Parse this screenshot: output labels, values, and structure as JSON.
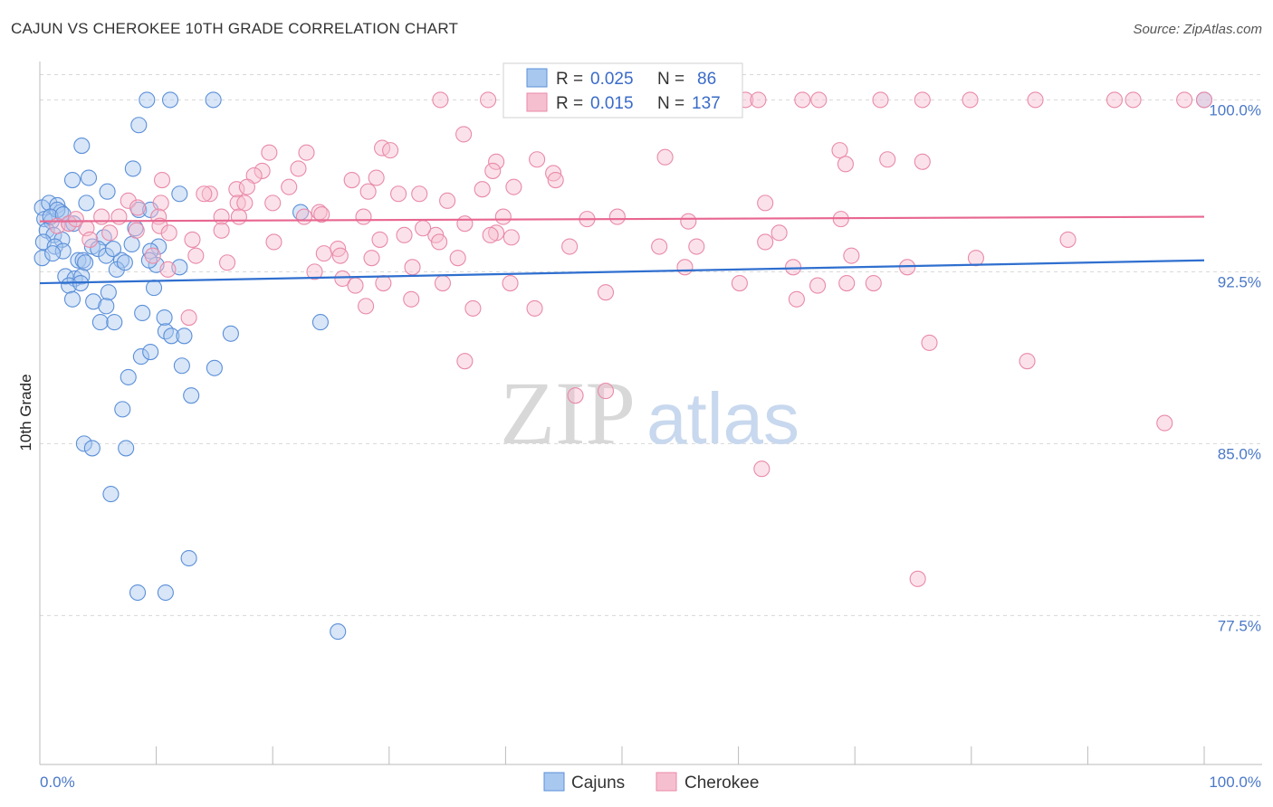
{
  "title": "CAJUN VS CHEROKEE 10TH GRADE CORRELATION CHART",
  "source": "Source: ZipAtlas.com",
  "watermark": {
    "zip": "ZIP",
    "atlas": "atlas"
  },
  "legend_box": {
    "r_label": "R =",
    "n_label": "N =",
    "rows": [
      {
        "series": "Cajuns",
        "r": "0.025",
        "n": "86"
      },
      {
        "series": "Cherokee",
        "r": "0.015",
        "n": "137"
      }
    ]
  },
  "bottom_legend": [
    "Cajuns",
    "Cherokee"
  ],
  "colors": {
    "cajun_fill": "#a8c8f0",
    "cajun_stroke": "#5b8fd8",
    "cajun_line": "#2f6fcf",
    "cherokee_fill": "#f6bfd0",
    "cherokee_stroke": "#e98aa8",
    "cherokee_line": "#e86690",
    "grid": "#d8d8d8",
    "tick_text": "#4a78c8"
  },
  "chart_data": {
    "type": "scatter",
    "title": "CAJUN VS CHEROKEE 10TH GRADE CORRELATION CHART",
    "xlabel": "",
    "ylabel": "10th Grade",
    "xlim": [
      0,
      100
    ],
    "ylim": [
      71.0,
      101.2
    ],
    "x_tick_labels": [
      "0.0%",
      "100.0%"
    ],
    "y_ticks": [
      {
        "value": 100.0,
        "label": "100.0%"
      },
      {
        "value": 92.5,
        "label": "92.5%"
      },
      {
        "value": 85.0,
        "label": "85.0%"
      },
      {
        "value": 77.5,
        "label": "77.5%"
      }
    ],
    "series": [
      {
        "name": "Cajuns",
        "trend": {
          "x": [
            0,
            100
          ],
          "y": [
            92.0,
            93.0
          ]
        },
        "points": [
          [
            9.2,
            100
          ],
          [
            11.2,
            100
          ],
          [
            14.9,
            100
          ],
          [
            100,
            100
          ],
          [
            8.5,
            98.9
          ],
          [
            3.6,
            98.0
          ],
          [
            8.0,
            97.0
          ],
          [
            2.8,
            96.5
          ],
          [
            4.2,
            96.6
          ],
          [
            5.8,
            96.0
          ],
          [
            12.0,
            95.9
          ],
          [
            0.2,
            95.3
          ],
          [
            0.8,
            95.5
          ],
          [
            1.5,
            95.4
          ],
          [
            1.8,
            95.1
          ],
          [
            4.0,
            95.5
          ],
          [
            8.5,
            95.2
          ],
          [
            9.5,
            95.2
          ],
          [
            22.4,
            95.1
          ],
          [
            0.4,
            94.8
          ],
          [
            1.0,
            94.7
          ],
          [
            2.5,
            94.6
          ],
          [
            0.6,
            94.3
          ],
          [
            1.2,
            94.1
          ],
          [
            8.2,
            94.4
          ],
          [
            0.3,
            93.8
          ],
          [
            1.9,
            93.9
          ],
          [
            5.5,
            94.0
          ],
          [
            1.3,
            93.6
          ],
          [
            2.0,
            93.4
          ],
          [
            4.5,
            93.6
          ],
          [
            5.0,
            93.5
          ],
          [
            7.9,
            93.7
          ],
          [
            10.2,
            93.6
          ],
          [
            0.2,
            93.1
          ],
          [
            3.3,
            93.0
          ],
          [
            5.7,
            93.2
          ],
          [
            7.0,
            93.0
          ],
          [
            9.5,
            93.4
          ],
          [
            3.7,
            93.0
          ],
          [
            2.2,
            92.3
          ],
          [
            3.0,
            92.2
          ],
          [
            3.6,
            92.3
          ],
          [
            6.6,
            92.6
          ],
          [
            10.0,
            92.8
          ],
          [
            12.0,
            92.7
          ],
          [
            2.5,
            91.9
          ],
          [
            3.5,
            92.0
          ],
          [
            5.9,
            91.6
          ],
          [
            9.8,
            91.8
          ],
          [
            2.8,
            91.3
          ],
          [
            4.6,
            91.2
          ],
          [
            5.7,
            91.0
          ],
          [
            8.8,
            90.7
          ],
          [
            10.7,
            90.5
          ],
          [
            5.2,
            90.3
          ],
          [
            6.4,
            90.3
          ],
          [
            24.1,
            90.3
          ],
          [
            10.8,
            89.9
          ],
          [
            11.3,
            89.7
          ],
          [
            12.4,
            89.7
          ],
          [
            16.4,
            89.8
          ],
          [
            8.7,
            88.8
          ],
          [
            9.5,
            89.0
          ],
          [
            12.2,
            88.4
          ],
          [
            15.0,
            88.3
          ],
          [
            7.6,
            87.9
          ],
          [
            13.0,
            87.1
          ],
          [
            7.1,
            86.5
          ],
          [
            3.8,
            85.0
          ],
          [
            4.5,
            84.8
          ],
          [
            7.4,
            84.8
          ],
          [
            6.1,
            82.8
          ],
          [
            12.8,
            80.0
          ],
          [
            8.4,
            78.5
          ],
          [
            10.8,
            78.5
          ],
          [
            25.6,
            76.8
          ],
          [
            1.5,
            95.2
          ],
          [
            2.9,
            94.6
          ],
          [
            3.9,
            92.9
          ],
          [
            6.3,
            93.5
          ],
          [
            1.1,
            93.3
          ],
          [
            7.3,
            92.9
          ],
          [
            9.4,
            93.0
          ],
          [
            0.9,
            94.9
          ],
          [
            2.0,
            95.0
          ]
        ]
      },
      {
        "name": "Cherokee",
        "trend": {
          "x": [
            0,
            100
          ],
          "y": [
            94.7,
            94.9
          ]
        },
        "points": [
          [
            34.4,
            100
          ],
          [
            38.5,
            100
          ],
          [
            41.8,
            100
          ],
          [
            50.9,
            100
          ],
          [
            56.0,
            100
          ],
          [
            60.6,
            100
          ],
          [
            61.7,
            100
          ],
          [
            65.5,
            100
          ],
          [
            66.9,
            100
          ],
          [
            72.2,
            100
          ],
          [
            75.8,
            100
          ],
          [
            79.9,
            100
          ],
          [
            85.5,
            100
          ],
          [
            92.3,
            100
          ],
          [
            93.9,
            100
          ],
          [
            98.3,
            100
          ],
          [
            100,
            100
          ],
          [
            36.4,
            98.5
          ],
          [
            29.4,
            97.9
          ],
          [
            30.1,
            97.8
          ],
          [
            39.2,
            97.3
          ],
          [
            42.7,
            97.4
          ],
          [
            53.7,
            97.5
          ],
          [
            68.7,
            97.8
          ],
          [
            69.2,
            97.2
          ],
          [
            72.8,
            97.4
          ],
          [
            75.8,
            97.3
          ],
          [
            22.9,
            97.7
          ],
          [
            19.7,
            97.7
          ],
          [
            19.1,
            96.9
          ],
          [
            22.2,
            97.0
          ],
          [
            28.9,
            96.6
          ],
          [
            38.9,
            96.9
          ],
          [
            40.7,
            96.2
          ],
          [
            44.1,
            96.8
          ],
          [
            44.3,
            96.5
          ],
          [
            10.5,
            96.5
          ],
          [
            18.4,
            96.7
          ],
          [
            14.6,
            95.9
          ],
          [
            16.9,
            96.1
          ],
          [
            17.8,
            96.2
          ],
          [
            21.4,
            96.2
          ],
          [
            26.8,
            96.5
          ],
          [
            28.2,
            96.0
          ],
          [
            30.8,
            95.9
          ],
          [
            32.6,
            95.9
          ],
          [
            35.0,
            95.6
          ],
          [
            38.0,
            96.1
          ],
          [
            7.6,
            95.6
          ],
          [
            10.4,
            95.5
          ],
          [
            14.1,
            95.9
          ],
          [
            17.0,
            95.5
          ],
          [
            17.6,
            95.5
          ],
          [
            20.0,
            95.5
          ],
          [
            24.0,
            95.1
          ],
          [
            8.4,
            95.3
          ],
          [
            5.3,
            94.9
          ],
          [
            6.8,
            94.9
          ],
          [
            10.2,
            94.9
          ],
          [
            15.6,
            94.9
          ],
          [
            17.1,
            94.9
          ],
          [
            22.7,
            94.9
          ],
          [
            24.2,
            95.0
          ],
          [
            27.8,
            94.9
          ],
          [
            36.5,
            94.6
          ],
          [
            39.8,
            94.9
          ],
          [
            49.6,
            94.9
          ],
          [
            55.7,
            94.7
          ],
          [
            62.3,
            95.5
          ],
          [
            68.8,
            94.8
          ],
          [
            1.5,
            94.5
          ],
          [
            2.5,
            94.6
          ],
          [
            4.0,
            94.4
          ],
          [
            6.0,
            94.2
          ],
          [
            8.3,
            94.3
          ],
          [
            10.3,
            94.5
          ],
          [
            11.1,
            94.2
          ],
          [
            15.6,
            94.3
          ],
          [
            39.2,
            94.2
          ],
          [
            31.3,
            94.1
          ],
          [
            34.0,
            94.1
          ],
          [
            63.5,
            94.2
          ],
          [
            47.0,
            94.8
          ],
          [
            25.6,
            93.5
          ],
          [
            32.9,
            94.4
          ],
          [
            3.1,
            94.8
          ],
          [
            4.3,
            93.9
          ],
          [
            13.1,
            93.9
          ],
          [
            20.1,
            93.8
          ],
          [
            29.2,
            93.9
          ],
          [
            34.3,
            93.8
          ],
          [
            38.7,
            94.1
          ],
          [
            40.5,
            94.0
          ],
          [
            53.2,
            93.6
          ],
          [
            56.4,
            93.6
          ],
          [
            62.3,
            93.8
          ],
          [
            88.3,
            93.9
          ],
          [
            45.5,
            93.6
          ],
          [
            24.4,
            93.3
          ],
          [
            25.8,
            93.2
          ],
          [
            28.5,
            93.1
          ],
          [
            35.9,
            93.1
          ],
          [
            9.7,
            93.2
          ],
          [
            13.4,
            93.2
          ],
          [
            80.4,
            93.1
          ],
          [
            69.7,
            93.2
          ],
          [
            16.1,
            92.9
          ],
          [
            32.0,
            92.7
          ],
          [
            55.4,
            92.7
          ],
          [
            64.7,
            92.7
          ],
          [
            74.5,
            92.7
          ],
          [
            11.0,
            92.6
          ],
          [
            23.6,
            92.5
          ],
          [
            26.0,
            92.2
          ],
          [
            34.6,
            92.0
          ],
          [
            40.4,
            92.0
          ],
          [
            60.1,
            92.0
          ],
          [
            66.8,
            91.9
          ],
          [
            69.3,
            92.0
          ],
          [
            71.6,
            92.0
          ],
          [
            27.1,
            91.9
          ],
          [
            29.5,
            92.0
          ],
          [
            31.9,
            91.3
          ],
          [
            48.6,
            91.6
          ],
          [
            65.0,
            91.3
          ],
          [
            28.0,
            91.0
          ],
          [
            37.2,
            90.9
          ],
          [
            42.5,
            90.9
          ],
          [
            12.8,
            90.5
          ],
          [
            76.4,
            89.4
          ],
          [
            36.5,
            88.6
          ],
          [
            84.8,
            88.6
          ],
          [
            48.6,
            87.3
          ],
          [
            46.0,
            87.1
          ],
          [
            96.6,
            85.9
          ],
          [
            62.0,
            83.9
          ],
          [
            75.4,
            79.1
          ]
        ]
      }
    ]
  }
}
